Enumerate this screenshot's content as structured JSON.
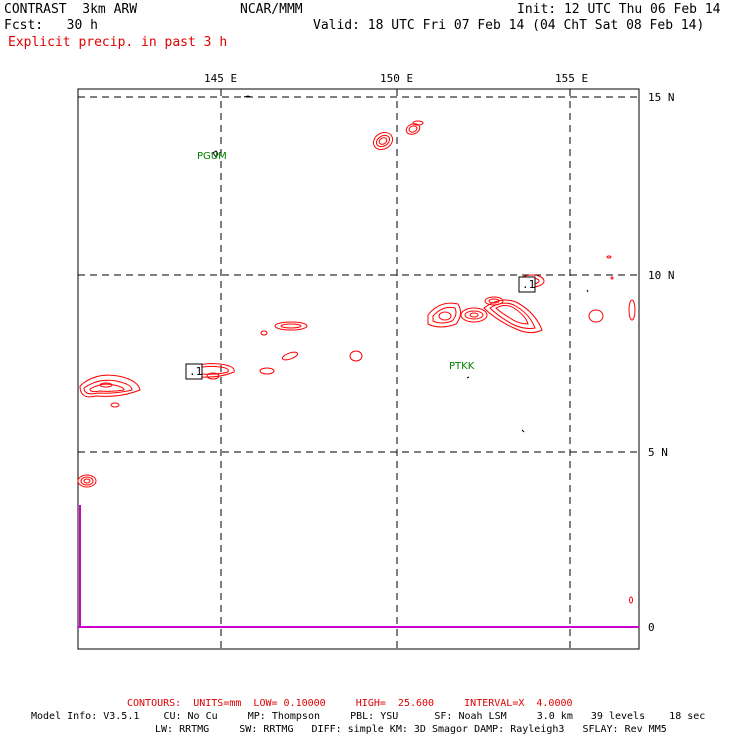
{
  "header": {
    "model": "CONTRAST  3km ARW",
    "org": "NCAR/MMM",
    "init": "Init: 12 UTC Thu 06 Feb 14",
    "fcst": "Fcst:   30 h",
    "valid": "Valid: 18 UTC Fri 07 Feb 14 (04 ChT Sat 08 Feb 14)",
    "field": "Explicit precip. in past 3 h"
  },
  "map": {
    "lon_labels": [
      "145 E",
      "150 E",
      "155 E"
    ],
    "lat_labels": [
      "15 N",
      "10 N",
      "5 N"
    ],
    "zero_label": "0",
    "stations": [
      {
        "id": "PGUM"
      },
      {
        "id": "PTKK"
      }
    ],
    "contour_labels": [
      ".1",
      ".1"
    ],
    "colors": {
      "contour": "#ff0000",
      "border": "#000000",
      "zero_line": "#cc00cc"
    }
  },
  "footer": {
    "contours": "CONTOURS:  UNITS=mm  LOW= 0.10000     HIGH=  25.600     INTERVAL=X  4.0000",
    "model_info_1": "Model Info: V3.5.1    CU: No Cu     MP: Thompson     PBL: YSU      SF: Noah LSM     3.0 km   39 levels    18 sec",
    "model_info_2": "LW: RRTMG     SW: RRTMG   DIFF: simple KM: 3D Smagor DAMP: Rayleigh3   SFLAY: Rev MM5"
  }
}
